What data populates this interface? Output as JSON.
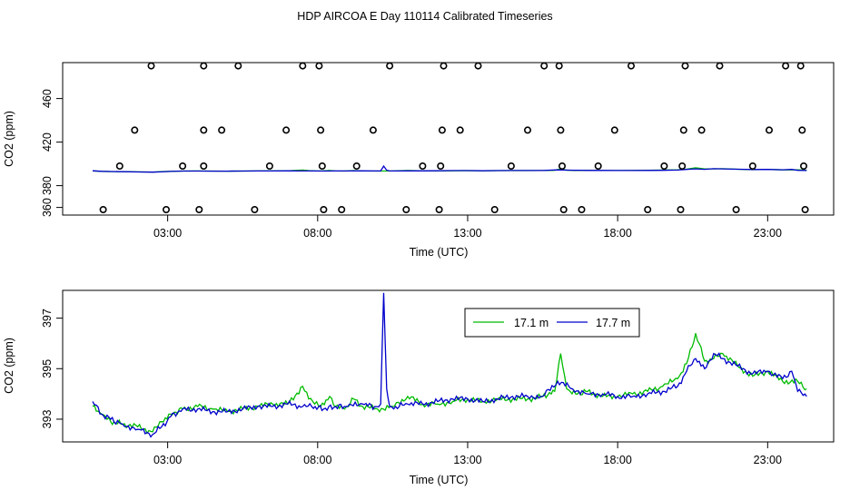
{
  "title": "HDP AIRCOA E  Day 110114  Calibrated Timeseries",
  "chart_data": [
    {
      "type": "scatter+line",
      "xlabel": "Time (UTC)",
      "ylabel": "CO2 (ppm)",
      "xlim": [
        -0.5,
        25.2
      ],
      "ylim": [
        353,
        493
      ],
      "xticks": [
        3,
        8,
        13,
        18,
        23
      ],
      "xtick_labels": [
        "03:00",
        "08:00",
        "13:00",
        "18:00",
        "23:00"
      ],
      "yticks": [
        360,
        380,
        420,
        460
      ],
      "ytick_labels": [
        "360",
        "380",
        "420",
        "460"
      ],
      "grid": false,
      "calibration_points": [
        {
          "x": 0.85,
          "y": 358
        },
        {
          "x": 1.4,
          "y": 398
        },
        {
          "x": 1.9,
          "y": 431
        },
        {
          "x": 2.45,
          "y": 490
        },
        {
          "x": 2.95,
          "y": 358
        },
        {
          "x": 3.5,
          "y": 398
        },
        {
          "x": 4.05,
          "y": 358
        },
        {
          "x": 4.2,
          "y": 398
        },
        {
          "x": 4.2,
          "y": 431
        },
        {
          "x": 4.2,
          "y": 490
        },
        {
          "x": 4.8,
          "y": 431
        },
        {
          "x": 5.35,
          "y": 490
        },
        {
          "x": 5.9,
          "y": 358
        },
        {
          "x": 6.4,
          "y": 398
        },
        {
          "x": 6.95,
          "y": 431
        },
        {
          "x": 7.5,
          "y": 490
        },
        {
          "x": 8.05,
          "y": 490
        },
        {
          "x": 8.1,
          "y": 431
        },
        {
          "x": 8.15,
          "y": 398
        },
        {
          "x": 8.2,
          "y": 358
        },
        {
          "x": 8.8,
          "y": 358
        },
        {
          "x": 9.3,
          "y": 398
        },
        {
          "x": 9.85,
          "y": 431
        },
        {
          "x": 10.4,
          "y": 490
        },
        {
          "x": 10.95,
          "y": 358
        },
        {
          "x": 11.5,
          "y": 398
        },
        {
          "x": 12.05,
          "y": 358
        },
        {
          "x": 12.1,
          "y": 398
        },
        {
          "x": 12.15,
          "y": 431
        },
        {
          "x": 12.2,
          "y": 490
        },
        {
          "x": 12.75,
          "y": 431
        },
        {
          "x": 13.35,
          "y": 490
        },
        {
          "x": 13.9,
          "y": 358
        },
        {
          "x": 14.45,
          "y": 398
        },
        {
          "x": 15.0,
          "y": 431
        },
        {
          "x": 15.55,
          "y": 490
        },
        {
          "x": 16.05,
          "y": 490
        },
        {
          "x": 16.1,
          "y": 431
        },
        {
          "x": 16.15,
          "y": 398
        },
        {
          "x": 16.2,
          "y": 358
        },
        {
          "x": 16.8,
          "y": 358
        },
        {
          "x": 17.35,
          "y": 398
        },
        {
          "x": 17.9,
          "y": 431
        },
        {
          "x": 18.45,
          "y": 490
        },
        {
          "x": 19.0,
          "y": 358
        },
        {
          "x": 19.55,
          "y": 398
        },
        {
          "x": 20.1,
          "y": 358
        },
        {
          "x": 20.15,
          "y": 398
        },
        {
          "x": 20.2,
          "y": 431
        },
        {
          "x": 20.25,
          "y": 490
        },
        {
          "x": 20.8,
          "y": 431
        },
        {
          "x": 21.4,
          "y": 490
        },
        {
          "x": 21.95,
          "y": 358
        },
        {
          "x": 22.5,
          "y": 398
        },
        {
          "x": 23.05,
          "y": 431
        },
        {
          "x": 23.6,
          "y": 490
        },
        {
          "x": 24.1,
          "y": 490
        },
        {
          "x": 24.15,
          "y": 431
        },
        {
          "x": 24.2,
          "y": 398
        },
        {
          "x": 24.25,
          "y": 358
        }
      ],
      "point_color": "#000000",
      "line_series_colors": [
        "#00bb00",
        "#0000cc"
      ]
    },
    {
      "type": "line",
      "xlabel": "Time (UTC)",
      "ylabel": "CO2 (ppm)",
      "xlim": [
        -0.5,
        25.2
      ],
      "ylim": [
        392.1,
        398.1
      ],
      "xticks": [
        3,
        8,
        13,
        18,
        23
      ],
      "xtick_labels": [
        "03:00",
        "08:00",
        "13:00",
        "18:00",
        "23:00"
      ],
      "yticks": [
        393,
        395,
        397
      ],
      "ytick_labels": [
        "393",
        "395",
        "397"
      ],
      "grid": false,
      "legend": "top-center",
      "series": [
        {
          "name": "17.1 m",
          "color": "#00bb00",
          "x": [
            0.5,
            0.8,
            1.1,
            1.5,
            2.0,
            2.5,
            2.8,
            3.1,
            3.5,
            4.0,
            4.5,
            5.0,
            5.5,
            6.0,
            6.5,
            7.0,
            7.5,
            7.7,
            7.9,
            8.1,
            8.4,
            8.6,
            8.9,
            9.2,
            9.5,
            10.0,
            10.5,
            11.0,
            11.5,
            12.0,
            12.5,
            13.0,
            13.5,
            14.0,
            14.5,
            15.0,
            15.5,
            15.9,
            16.1,
            16.3,
            16.6,
            17.0,
            17.5,
            18.0,
            18.5,
            19.0,
            19.5,
            20.0,
            20.3,
            20.6,
            20.9,
            21.2,
            21.5,
            22.0,
            22.5,
            23.0,
            23.5,
            24.0,
            24.3
          ],
          "values": [
            393.5,
            393.2,
            392.9,
            392.8,
            392.7,
            392.5,
            392.9,
            393.2,
            393.4,
            393.5,
            393.4,
            393.3,
            393.4,
            393.5,
            393.6,
            393.6,
            394.3,
            393.8,
            393.6,
            393.5,
            393.9,
            393.5,
            393.4,
            393.8,
            393.5,
            393.4,
            393.5,
            393.9,
            393.6,
            393.6,
            393.7,
            393.8,
            393.7,
            393.8,
            393.8,
            393.8,
            393.9,
            394.1,
            395.6,
            394.2,
            394.0,
            394.1,
            393.9,
            393.9,
            394.0,
            394.1,
            394.3,
            394.6,
            395.2,
            396.4,
            395.3,
            395.4,
            395.6,
            395.1,
            394.7,
            394.9,
            394.5,
            394.5,
            394.2
          ]
        },
        {
          "name": "17.7 m",
          "color": "#0000cc",
          "x": [
            0.5,
            0.8,
            1.1,
            1.5,
            2.0,
            2.5,
            2.8,
            3.1,
            3.5,
            4.0,
            4.5,
            5.0,
            5.5,
            6.0,
            6.5,
            7.0,
            7.5,
            7.8,
            8.2,
            8.6,
            9.0,
            9.5,
            9.9,
            10.1,
            10.2,
            10.3,
            10.4,
            10.6,
            11.0,
            11.5,
            12.0,
            12.5,
            13.0,
            13.5,
            14.0,
            14.5,
            15.0,
            15.5,
            16.0,
            16.5,
            17.0,
            17.5,
            18.0,
            18.5,
            19.0,
            19.5,
            20.0,
            20.3,
            20.6,
            20.9,
            21.2,
            21.5,
            22.0,
            22.5,
            23.0,
            23.5,
            23.8,
            24.0,
            24.3
          ],
          "values": [
            393.7,
            393.2,
            393.0,
            392.8,
            392.6,
            392.4,
            392.7,
            393.1,
            393.4,
            393.4,
            393.3,
            393.3,
            393.4,
            393.5,
            393.5,
            393.6,
            393.5,
            393.5,
            393.4,
            393.5,
            393.5,
            393.6,
            393.5,
            393.6,
            398.0,
            394.2,
            393.5,
            393.5,
            393.6,
            393.6,
            393.7,
            393.8,
            393.8,
            393.7,
            393.8,
            393.9,
            393.9,
            393.9,
            394.5,
            394.2,
            394.0,
            394.0,
            393.9,
            393.9,
            394.0,
            394.1,
            394.3,
            394.9,
            395.4,
            395.0,
            395.6,
            395.4,
            395.1,
            394.8,
            394.9,
            394.6,
            394.9,
            394.1,
            393.9
          ]
        }
      ]
    }
  ]
}
